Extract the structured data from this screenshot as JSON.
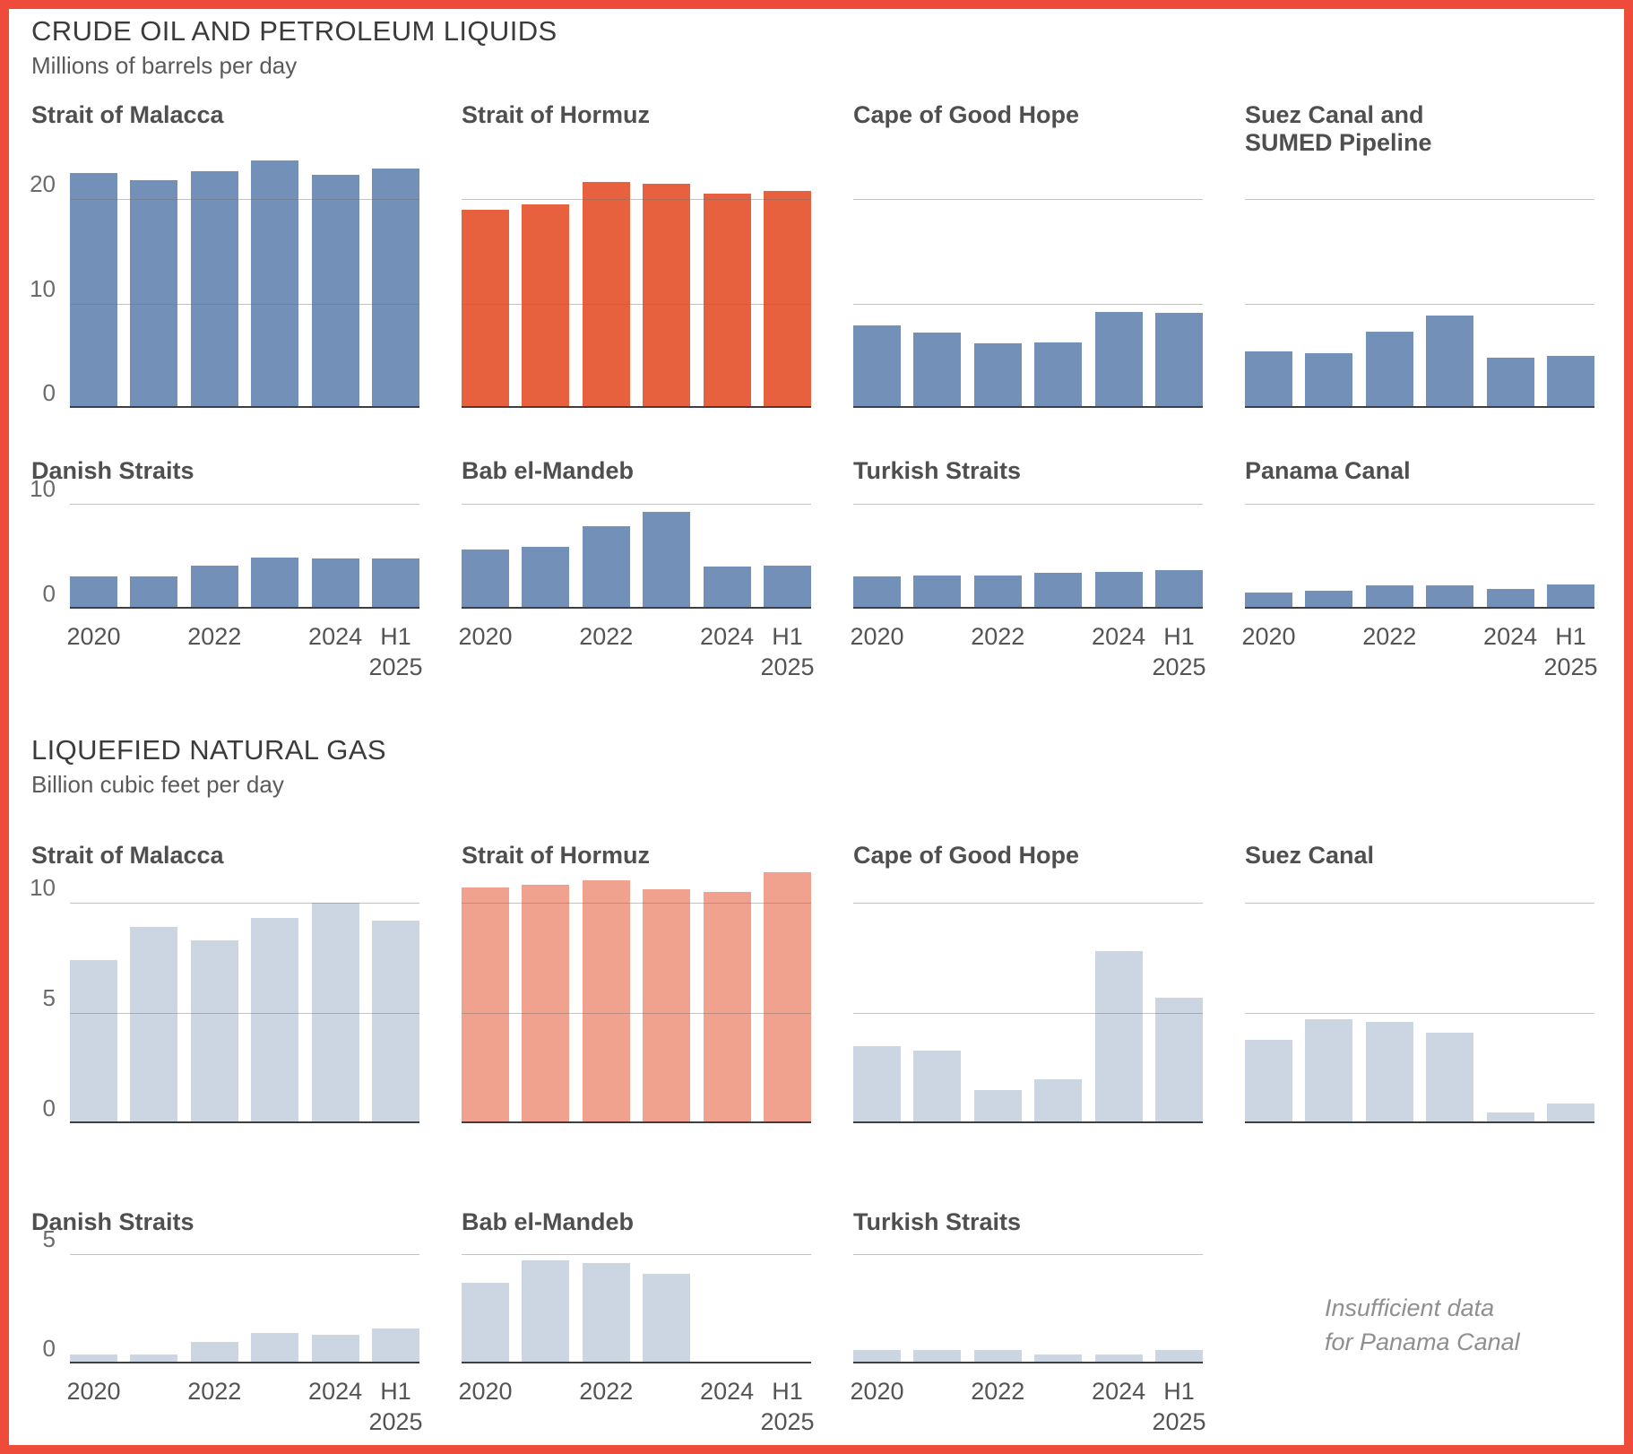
{
  "page": {
    "background": "#ffffff",
    "border_color": "#ef4b3a"
  },
  "colors": {
    "crude_blue": "#7390b8",
    "crude_red": "#e8613e",
    "lng_blue": "#ccd6e3",
    "lng_red": "#f1a28e",
    "gridline": "#b8b8b8",
    "axis": "#3f3f3f"
  },
  "crude_section": {
    "title": "CRUDE OIL AND PETROLEUM LIQUIDS",
    "subtitle": "Millions of barrels per day"
  },
  "lng_section": {
    "title": "LIQUEFIED NATURAL GAS",
    "subtitle": "Billion cubic feet per day"
  },
  "x_axis": {
    "tick_labels": [
      "2020",
      "2022",
      "2024"
    ],
    "final_label_line1": "H1",
    "final_label_line2": "2025"
  },
  "note": {
    "line1": "Insufficient data",
    "line2": "for Panama Canal"
  },
  "chart_data": [
    {
      "type": "bar",
      "section": "crude",
      "title": "Strait of Malacca",
      "title_line2": null,
      "categories": [
        "2020",
        "2021",
        "2022",
        "2023",
        "2024",
        "H1 2025"
      ],
      "values": [
        22.5,
        21.8,
        22.7,
        23.7,
        22.3,
        22.9
      ],
      "color": "crude_blue",
      "ylim": [
        0,
        25
      ],
      "gridlines": [
        10,
        20
      ],
      "y_tick_labels": [
        {
          "value": 20,
          "label": "20"
        },
        {
          "value": 10,
          "label": "10"
        },
        {
          "value": 0,
          "label": "0"
        }
      ],
      "show_x_labels": false
    },
    {
      "type": "bar",
      "section": "crude",
      "title": "Strait of Hormuz",
      "title_line2": null,
      "categories": [
        "2020",
        "2021",
        "2022",
        "2023",
        "2024",
        "H1 2025"
      ],
      "values": [
        19.0,
        19.5,
        21.6,
        21.5,
        20.5,
        20.8
      ],
      "color": "crude_red",
      "ylim": [
        0,
        25
      ],
      "gridlines": [
        10,
        20
      ],
      "y_tick_labels": [],
      "show_x_labels": false
    },
    {
      "type": "bar",
      "section": "crude",
      "title": "Cape of Good Hope",
      "title_line2": null,
      "categories": [
        "2020",
        "2021",
        "2022",
        "2023",
        "2024",
        "H1 2025"
      ],
      "values": [
        7.9,
        7.2,
        6.2,
        6.3,
        9.2,
        9.1
      ],
      "color": "crude_blue",
      "ylim": [
        0,
        25
      ],
      "gridlines": [
        10,
        20
      ],
      "y_tick_labels": [],
      "show_x_labels": false
    },
    {
      "type": "bar",
      "section": "crude",
      "title": "Suez Canal and",
      "title_line2": "SUMED Pipeline",
      "categories": [
        "2020",
        "2021",
        "2022",
        "2023",
        "2024",
        "H1 2025"
      ],
      "values": [
        5.4,
        5.2,
        7.3,
        8.8,
        4.8,
        5.0
      ],
      "color": "crude_blue",
      "ylim": [
        0,
        25
      ],
      "gridlines": [
        10,
        20
      ],
      "y_tick_labels": [],
      "show_x_labels": false
    },
    {
      "type": "bar",
      "section": "crude",
      "title": "Danish Straits",
      "title_line2": null,
      "categories": [
        "2020",
        "2021",
        "2022",
        "2023",
        "2024",
        "H1 2025"
      ],
      "values": [
        3.1,
        3.1,
        4.1,
        4.9,
        4.8,
        4.8
      ],
      "color": "crude_blue",
      "ylim": [
        0,
        10
      ],
      "gridlines": [
        10
      ],
      "y_tick_labels": [
        {
          "value": 10,
          "label": "10"
        },
        {
          "value": 0,
          "label": "0"
        }
      ],
      "show_x_labels": true
    },
    {
      "type": "bar",
      "section": "crude",
      "title": "Bab el-Mandeb",
      "title_line2": null,
      "categories": [
        "2020",
        "2021",
        "2022",
        "2023",
        "2024",
        "H1 2025"
      ],
      "values": [
        5.6,
        5.9,
        7.9,
        9.2,
        4.0,
        4.1
      ],
      "color": "crude_blue",
      "ylim": [
        0,
        10
      ],
      "gridlines": [
        10
      ],
      "y_tick_labels": [],
      "show_x_labels": true
    },
    {
      "type": "bar",
      "section": "crude",
      "title": "Turkish Straits",
      "title_line2": null,
      "categories": [
        "2020",
        "2021",
        "2022",
        "2023",
        "2024",
        "H1 2025"
      ],
      "values": [
        3.1,
        3.2,
        3.2,
        3.4,
        3.5,
        3.7
      ],
      "color": "crude_blue",
      "ylim": [
        0,
        10
      ],
      "gridlines": [
        10
      ],
      "y_tick_labels": [],
      "show_x_labels": true
    },
    {
      "type": "bar",
      "section": "crude",
      "title": "Panama Canal",
      "title_line2": null,
      "categories": [
        "2020",
        "2021",
        "2022",
        "2023",
        "2024",
        "H1 2025"
      ],
      "values": [
        1.5,
        1.7,
        2.2,
        2.2,
        1.9,
        2.3
      ],
      "color": "crude_blue",
      "ylim": [
        0,
        10
      ],
      "gridlines": [
        10
      ],
      "y_tick_labels": [],
      "show_x_labels": true
    },
    {
      "type": "bar",
      "section": "lng",
      "title": "Strait of Malacca",
      "title_line2": null,
      "categories": [
        "2020",
        "2021",
        "2022",
        "2023",
        "2024",
        "H1 2025"
      ],
      "values": [
        7.4,
        8.9,
        8.3,
        9.3,
        10.0,
        9.2
      ],
      "color": "lng_blue",
      "ylim": [
        0,
        11.6
      ],
      "gridlines": [
        5,
        10
      ],
      "y_tick_labels": [
        {
          "value": 10,
          "label": "10"
        },
        {
          "value": 5,
          "label": "5"
        },
        {
          "value": 0,
          "label": "0"
        }
      ],
      "show_x_labels": false
    },
    {
      "type": "bar",
      "section": "lng",
      "title": "Strait of Hormuz",
      "title_line2": null,
      "categories": [
        "2020",
        "2021",
        "2022",
        "2023",
        "2024",
        "H1 2025"
      ],
      "values": [
        10.7,
        10.8,
        11.0,
        10.6,
        10.5,
        11.4
      ],
      "color": "lng_red",
      "ylim": [
        0,
        11.6
      ],
      "gridlines": [
        5,
        10
      ],
      "y_tick_labels": [],
      "show_x_labels": false
    },
    {
      "type": "bar",
      "section": "lng",
      "title": "Cape of Good Hope",
      "title_line2": null,
      "categories": [
        "2020",
        "2021",
        "2022",
        "2023",
        "2024",
        "H1 2025"
      ],
      "values": [
        3.5,
        3.3,
        1.5,
        2.0,
        7.8,
        5.7
      ],
      "color": "lng_blue",
      "ylim": [
        0,
        11.6
      ],
      "gridlines": [
        5,
        10
      ],
      "y_tick_labels": [],
      "show_x_labels": false
    },
    {
      "type": "bar",
      "section": "lng",
      "title": "Suez Canal",
      "title_line2": null,
      "categories": [
        "2020",
        "2021",
        "2022",
        "2023",
        "2024",
        "H1 2025"
      ],
      "values": [
        3.8,
        4.7,
        4.6,
        4.1,
        0.5,
        0.9
      ],
      "color": "lng_blue",
      "ylim": [
        0,
        11.6
      ],
      "gridlines": [
        5,
        10
      ],
      "y_tick_labels": [],
      "show_x_labels": false
    },
    {
      "type": "bar",
      "section": "lng",
      "title": "Danish Straits",
      "title_line2": null,
      "categories": [
        "2020",
        "2021",
        "2022",
        "2023",
        "2024",
        "H1 2025"
      ],
      "values": [
        0.4,
        0.4,
        1.0,
        1.4,
        1.3,
        1.6
      ],
      "color": "lng_blue",
      "ylim": [
        0,
        5
      ],
      "gridlines": [
        5
      ],
      "y_tick_labels": [
        {
          "value": 5,
          "label": "5"
        },
        {
          "value": 0,
          "label": "0"
        }
      ],
      "show_x_labels": true
    },
    {
      "type": "bar",
      "section": "lng",
      "title": "Bab el-Mandeb",
      "title_line2": null,
      "categories": [
        "2020",
        "2021",
        "2022",
        "2023",
        "2024",
        "H1 2025"
      ],
      "values": [
        3.7,
        4.7,
        4.6,
        4.1,
        0,
        0
      ],
      "color": "lng_blue",
      "ylim": [
        0,
        5
      ],
      "gridlines": [
        5
      ],
      "y_tick_labels": [],
      "show_x_labels": true
    },
    {
      "type": "bar",
      "section": "lng",
      "title": "Turkish Straits",
      "title_line2": null,
      "categories": [
        "2020",
        "2021",
        "2022",
        "2023",
        "2024",
        "H1 2025"
      ],
      "values": [
        0.6,
        0.6,
        0.6,
        0.4,
        0.4,
        0.6
      ],
      "color": "lng_blue",
      "ylim": [
        0,
        5
      ],
      "gridlines": [
        5
      ],
      "y_tick_labels": [],
      "show_x_labels": true
    }
  ]
}
